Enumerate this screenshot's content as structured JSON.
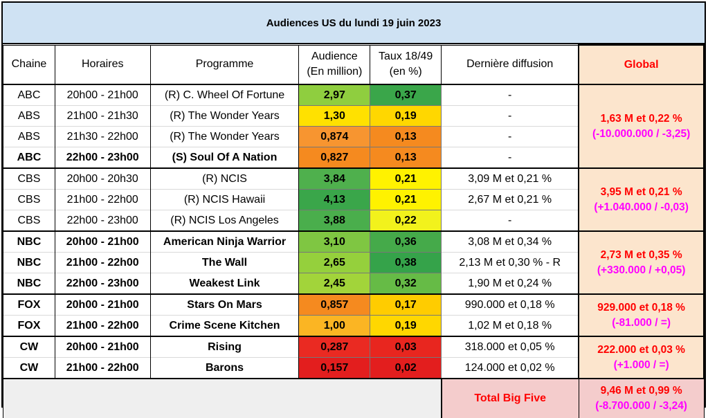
{
  "title": "Audiences US du lundi 19 juin 2023",
  "headers": {
    "chaine": "Chaine",
    "horaires": "Horaires",
    "programme": "Programme",
    "audience_l1": "Audience",
    "audience_l2": "(En million)",
    "taux_l1": "Taux 18/49",
    "taux_l2": "(en %)",
    "derniere": "Dernière diffusion",
    "global": "Global"
  },
  "rows": [
    {
      "chaine": "ABC",
      "horaires": "20h00 - 21h00",
      "programme": "(R) C. Wheel Of Fortune",
      "audience": "2,97",
      "audience_color": "#8fce3f",
      "taux": "0,37",
      "taux_color": "#3aa64a",
      "derniere": "-",
      "bold": false
    },
    {
      "chaine": "ABS",
      "horaires": "21h00 - 21h30",
      "programme": "(R) The Wonder Years",
      "audience": "1,30",
      "audience_color": "#ffe100",
      "taux": "0,19",
      "taux_color": "#ffd700",
      "derniere": "-",
      "bold": false
    },
    {
      "chaine": "ABS",
      "horaires": "21h30 - 22h00",
      "programme": "(R) The Wonder Years",
      "audience": "0,874",
      "audience_color": "#f79530",
      "taux": "0,13",
      "taux_color": "#f58a1f",
      "derniere": "-",
      "bold": false
    },
    {
      "chaine": "ABC",
      "horaires": "22h00 - 23h00",
      "programme": "(S) Soul Of A Nation",
      "audience": "0,827",
      "audience_color": "#f58a1f",
      "taux": "0,13",
      "taux_color": "#f58a1f",
      "derniere": "-",
      "bold": true
    },
    {
      "chaine": "CBS",
      "horaires": "20h00 - 20h30",
      "programme": "(R) NCIS",
      "audience": "3,84",
      "audience_color": "#4fb04d",
      "taux": "0,21",
      "taux_color": "#fff200",
      "derniere": "3,09 M et 0,21 %",
      "bold": false
    },
    {
      "chaine": "CBS",
      "horaires": "21h00 - 22h00",
      "programme": "(R) NCIS Hawaii",
      "audience": "4,13",
      "audience_color": "#3aa64a",
      "taux": "0,21",
      "taux_color": "#fff200",
      "derniere": "2,67 M et 0,21 %",
      "bold": false
    },
    {
      "chaine": "CBS",
      "horaires": "22h00 - 23h00",
      "programme": "(R) NCIS Los Angeles",
      "audience": "3,88",
      "audience_color": "#4aae4c",
      "taux": "0,22",
      "taux_color": "#f2f21c",
      "derniere": "-",
      "bold": false
    },
    {
      "chaine": "NBC",
      "horaires": "20h00 - 21h00",
      "programme": "American Ninja Warrior",
      "audience": "3,10",
      "audience_color": "#7fc642",
      "taux": "0,36",
      "taux_color": "#45aa4a",
      "derniere": "3,08 M et 0,34 %",
      "bold": true
    },
    {
      "chaine": "NBC",
      "horaires": "21h00 - 22h00",
      "programme": "The Wall",
      "audience": "2,65",
      "audience_color": "#95d03c",
      "taux": "0,38",
      "taux_color": "#35a34a",
      "derniere": "2,13 M et 0,30 % - R",
      "bold": true
    },
    {
      "chaine": "NBC",
      "horaires": "22h00 - 23h00",
      "programme": "Weakest Link",
      "audience": "2,45",
      "audience_color": "#a2d43a",
      "taux": "0,32",
      "taux_color": "#66bb46",
      "derniere": "1,90 M et 0,24 %",
      "bold": true
    },
    {
      "chaine": "FOX",
      "horaires": "20h00 - 21h00",
      "programme": "Stars On Mars",
      "audience": "0,857",
      "audience_color": "#f58a1f",
      "taux": "0,17",
      "taux_color": "#ffcc00",
      "derniere": "990.000 et 0,18 %",
      "bold": true
    },
    {
      "chaine": "FOX",
      "horaires": "21h00 - 22h00",
      "programme": "Crime Scene Kitchen",
      "audience": "1,00",
      "audience_color": "#fbb523",
      "taux": "0,19",
      "taux_color": "#ffd700",
      "derniere": "1,02 M et 0,18 %",
      "bold": true
    },
    {
      "chaine": "CW",
      "horaires": "20h00 - 21h00",
      "programme": "Rising",
      "audience": "0,287",
      "audience_color": "#ea2a22",
      "taux": "0,03",
      "taux_color": "#e8261f",
      "derniere": "318.000 et 0,05 %",
      "bold": true
    },
    {
      "chaine": "CW",
      "horaires": "21h00 - 22h00",
      "programme": "Barons",
      "audience": "0,157",
      "audience_color": "#e31e1e",
      "taux": "0,02",
      "taux_color": "#e31e1e",
      "derniere": "124.000 et 0,02 %",
      "bold": true
    }
  ],
  "groups": [
    {
      "start": 0,
      "span": 4,
      "line1": "1,63 M et 0,22 %",
      "line2": "(-10.000.000 / -3,25)"
    },
    {
      "start": 4,
      "span": 3,
      "line1": "3,95 M et 0,21 %",
      "line2": "(+1.040.000 / -0,03)"
    },
    {
      "start": 7,
      "span": 3,
      "line1": "2,73 M et 0,35 %",
      "line2": "(+330.000 / +0,05)"
    },
    {
      "start": 10,
      "span": 2,
      "line1": "929.000 et 0,18 %",
      "line2": "(-81.000 / =)"
    },
    {
      "start": 12,
      "span": 2,
      "line1": "222.000 et 0,03 %",
      "line2": "(+1.000 / =)"
    }
  ],
  "total": {
    "label": "Total Big Five",
    "line1": "9,46 M et 0,99 %",
    "line2": "(-8.700.000 / -3,24)"
  },
  "colors": {
    "title_bg": "#cfe2f3",
    "global_bg": "#fce5cd",
    "total_bg": "#f4cccc",
    "red_text": "#ff0000",
    "magenta_text": "#ff00ff"
  }
}
